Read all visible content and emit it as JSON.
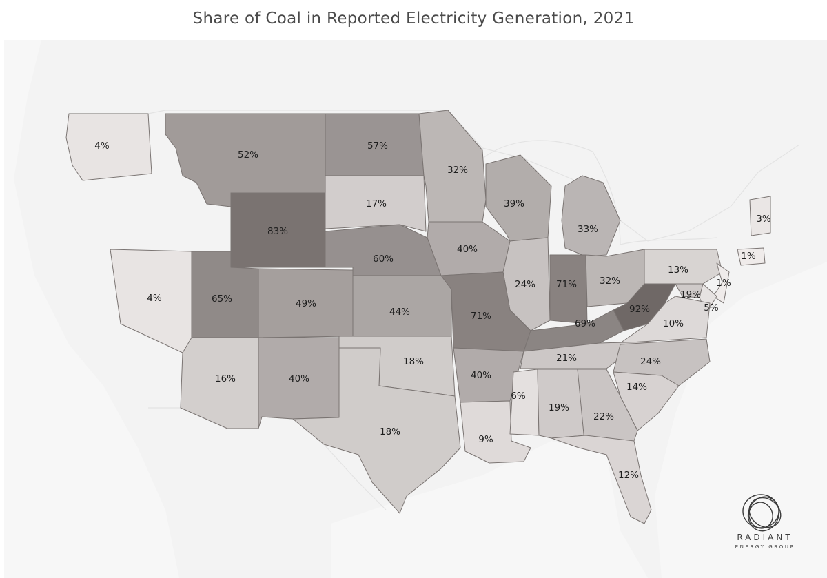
{
  "title": "Share of Coal in Reported Electricity Generation, 2021",
  "colors": {
    "background": "#ffffff",
    "base_map": "#f2f2f2",
    "water": "#ffffff",
    "color_min": "#efebea",
    "color_max": "#6f6866",
    "border": "#7a7472",
    "label": "#1e1e1e"
  },
  "chart_data": {
    "type": "choropleth",
    "metric": "Share of coal in reported electricity generation",
    "year": 2021,
    "states": [
      {
        "state": "WA",
        "value": 4,
        "label": "4%"
      },
      {
        "state": "MT",
        "value": 52,
        "label": "52%"
      },
      {
        "state": "ND",
        "value": 57,
        "label": "57%"
      },
      {
        "state": "MN",
        "value": 32,
        "label": "32%"
      },
      {
        "state": "SD",
        "value": 17,
        "label": "17%"
      },
      {
        "state": "WY",
        "value": 83,
        "label": "83%"
      },
      {
        "state": "WI",
        "value": 39,
        "label": "39%"
      },
      {
        "state": "MI",
        "value": 33,
        "label": "33%"
      },
      {
        "state": "NV",
        "value": 4,
        "label": "4%"
      },
      {
        "state": "UT",
        "value": 65,
        "label": "65%"
      },
      {
        "state": "CO",
        "value": 49,
        "label": "49%"
      },
      {
        "state": "NE",
        "value": 60,
        "label": "60%"
      },
      {
        "state": "IA",
        "value": 40,
        "label": "40%"
      },
      {
        "state": "IL",
        "value": 24,
        "label": "24%"
      },
      {
        "state": "IN",
        "value": 71,
        "label": "71%"
      },
      {
        "state": "OH",
        "value": 32,
        "label": "32%"
      },
      {
        "state": "PA",
        "value": 13,
        "label": "13%"
      },
      {
        "state": "NH",
        "value": 3,
        "label": "3%"
      },
      {
        "state": "CT",
        "value": 1,
        "label": "1%"
      },
      {
        "state": "NJ",
        "value": 1,
        "label": "1%"
      },
      {
        "state": "MD",
        "value": 19,
        "label": "19%"
      },
      {
        "state": "DE",
        "value": 5,
        "label": "5%"
      },
      {
        "state": "WV",
        "value": 92,
        "label": "92%"
      },
      {
        "state": "VA",
        "value": 10,
        "label": "10%"
      },
      {
        "state": "KS",
        "value": 44,
        "label": "44%"
      },
      {
        "state": "MO",
        "value": 71,
        "label": "71%"
      },
      {
        "state": "KY",
        "value": 69,
        "label": "69%"
      },
      {
        "state": "TN",
        "value": 21,
        "label": "21%"
      },
      {
        "state": "NC",
        "value": 24,
        "label": "24%"
      },
      {
        "state": "SC",
        "value": 14,
        "label": "14%"
      },
      {
        "state": "AZ",
        "value": 16,
        "label": "16%"
      },
      {
        "state": "NM",
        "value": 40,
        "label": "40%"
      },
      {
        "state": "OK",
        "value": 18,
        "label": "18%"
      },
      {
        "state": "TX",
        "value": 18,
        "label": "18%"
      },
      {
        "state": "AR",
        "value": 40,
        "label": "40%"
      },
      {
        "state": "LA",
        "value": 9,
        "label": "9%"
      },
      {
        "state": "MS",
        "value": 6,
        "label": "6%"
      },
      {
        "state": "AL",
        "value": 19,
        "label": "19%"
      },
      {
        "state": "GA",
        "value": 22,
        "label": "22%"
      },
      {
        "state": "FL",
        "value": 12,
        "label": "12%"
      }
    ]
  },
  "logo": {
    "name": "RADIANT",
    "subtitle": "ENERGY GROUP"
  }
}
